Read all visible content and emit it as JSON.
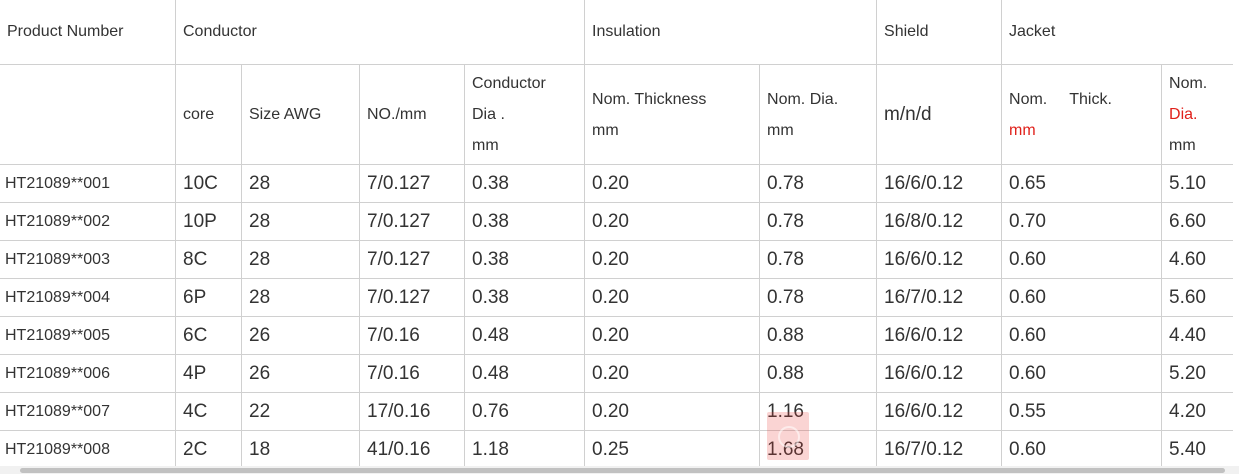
{
  "headers": {
    "product_number": "Product Number",
    "conductor": "Conductor",
    "insulation": "Insulation",
    "shield": "Shield",
    "jacket": "Jacket"
  },
  "subheaders": {
    "core": "core",
    "size_awg": "Size AWG",
    "no_mm": "NO./mm",
    "conductor_dia": [
      "Conductor",
      "Dia .",
      "mm"
    ],
    "ins_thickness": [
      "Nom. Thickness",
      "mm"
    ],
    "ins_dia": [
      "Nom. Dia.",
      "mm"
    ],
    "shield_mnd": "m/n/d",
    "jacket_thick": [
      "Nom.",
      "Thick.",
      "mm"
    ],
    "jacket_dia": [
      "Nom.",
      "Dia.",
      "mm"
    ]
  },
  "rows": [
    {
      "pn": "HT21089**001",
      "core": "10C",
      "awg": "28",
      "nomm": "7/0.127",
      "cdia": "0.38",
      "ithk": "0.20",
      "idia": "0.78",
      "shield": "16/6/0.12",
      "jthk": "0.65",
      "jdia": "5.10"
    },
    {
      "pn": "HT21089**002",
      "core": "10P",
      "awg": "28",
      "nomm": "7/0.127",
      "cdia": "0.38",
      "ithk": "0.20",
      "idia": "0.78",
      "shield": "16/8/0.12",
      "jthk": "0.70",
      "jdia": "6.60"
    },
    {
      "pn": "HT21089**003",
      "core": "8C",
      "awg": "28",
      "nomm": "7/0.127",
      "cdia": "0.38",
      "ithk": "0.20",
      "idia": "0.78",
      "shield": "16/6/0.12",
      "jthk": "0.60",
      "jdia": "4.60"
    },
    {
      "pn": "HT21089**004",
      "core": "6P",
      "awg": "28",
      "nomm": "7/0.127",
      "cdia": "0.38",
      "ithk": "0.20",
      "idia": "0.78",
      "shield": "16/7/0.12",
      "jthk": "0.60",
      "jdia": "5.60"
    },
    {
      "pn": "HT21089**005",
      "core": "6C",
      "awg": "26",
      "nomm": "7/0.16",
      "cdia": "0.48",
      "ithk": "0.20",
      "idia": "0.88",
      "shield": "16/6/0.12",
      "jthk": "0.60",
      "jdia": "4.40"
    },
    {
      "pn": "HT21089**006",
      "core": "4P",
      "awg": "26",
      "nomm": "7/0.16",
      "cdia": "0.48",
      "ithk": "0.20",
      "idia": "0.88",
      "shield": "16/6/0.12",
      "jthk": "0.60",
      "jdia": "5.20"
    },
    {
      "pn": "HT21089**007",
      "core": "4C",
      "awg": "22",
      "nomm": "17/0.16",
      "cdia": "0.76",
      "ithk": "0.20",
      "idia": "1.16",
      "shield": "16/6/0.12",
      "jthk": "0.55",
      "jdia": "4.20"
    },
    {
      "pn": "HT21089**008",
      "core": "2C",
      "awg": "18",
      "nomm": "41/0.16",
      "cdia": "1.18",
      "ithk": "0.25",
      "idia": "1.68",
      "shield": "16/7/0.12",
      "jthk": "0.60",
      "jdia": "5.40"
    }
  ],
  "colors": {
    "text": "#333333",
    "accent_red": "#e0211b",
    "border": "#d0d0d0"
  }
}
